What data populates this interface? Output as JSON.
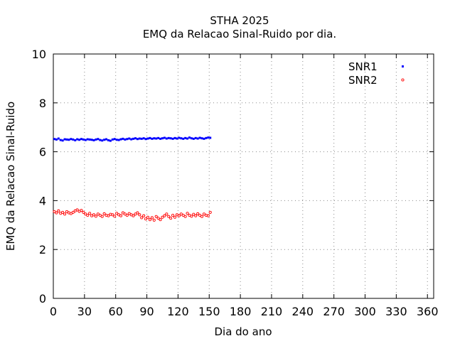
{
  "chart_data": {
    "type": "scatter",
    "title": "STHA 2025",
    "subtitle": "EMQ da Relacao Sinal-Ruido por dia.",
    "xlabel": "Dia do ano",
    "ylabel": "EMQ da Relacao Sinal-Ruido",
    "xlim": [
      0,
      366
    ],
    "ylim": [
      0,
      10
    ],
    "xticks": [
      "0",
      "30",
      "60",
      "90",
      "120",
      "150",
      "180",
      "210",
      "240",
      "270",
      "300",
      "330",
      "360"
    ],
    "yticks": [
      "0",
      "2",
      "4",
      "6",
      "8",
      "10"
    ],
    "grid": true,
    "legend_position": "top-right",
    "colors": {
      "SNR1": "#0000ff",
      "SNR2": "#ff0000"
    },
    "series": [
      {
        "name": "SNR1",
        "marker": "filled-dot",
        "x": [
          1,
          3,
          5,
          7,
          9,
          11,
          13,
          15,
          17,
          19,
          21,
          23,
          25,
          27,
          29,
          31,
          33,
          35,
          37,
          39,
          41,
          43,
          45,
          47,
          49,
          51,
          53,
          55,
          57,
          59,
          61,
          63,
          65,
          67,
          69,
          71,
          73,
          75,
          77,
          79,
          81,
          83,
          85,
          87,
          89,
          91,
          93,
          95,
          97,
          99,
          101,
          103,
          105,
          107,
          109,
          111,
          113,
          115,
          117,
          119,
          121,
          123,
          125,
          127,
          129,
          131,
          133,
          135,
          137,
          139,
          141,
          143,
          145,
          147,
          149,
          151
        ],
        "y": [
          6.52,
          6.5,
          6.54,
          6.48,
          6.46,
          6.51,
          6.5,
          6.49,
          6.52,
          6.5,
          6.47,
          6.51,
          6.49,
          6.52,
          6.5,
          6.48,
          6.51,
          6.5,
          6.49,
          6.47,
          6.5,
          6.52,
          6.48,
          6.46,
          6.49,
          6.51,
          6.47,
          6.45,
          6.5,
          6.52,
          6.49,
          6.48,
          6.51,
          6.53,
          6.5,
          6.52,
          6.54,
          6.51,
          6.53,
          6.55,
          6.52,
          6.54,
          6.53,
          6.55,
          6.52,
          6.54,
          6.56,
          6.53,
          6.55,
          6.54,
          6.56,
          6.53,
          6.55,
          6.57,
          6.54,
          6.56,
          6.55,
          6.53,
          6.56,
          6.54,
          6.57,
          6.55,
          6.53,
          6.56,
          6.54,
          6.58,
          6.55,
          6.53,
          6.56,
          6.54,
          6.57,
          6.55,
          6.53,
          6.56,
          6.58,
          6.57
        ]
      },
      {
        "name": "SNR2",
        "marker": "open-circle",
        "x": [
          1,
          3,
          5,
          7,
          9,
          11,
          13,
          15,
          17,
          19,
          21,
          23,
          25,
          27,
          29,
          31,
          33,
          35,
          37,
          39,
          41,
          43,
          45,
          47,
          49,
          51,
          53,
          55,
          57,
          59,
          61,
          63,
          65,
          67,
          69,
          71,
          73,
          75,
          77,
          79,
          81,
          83,
          85,
          87,
          89,
          91,
          93,
          95,
          97,
          99,
          101,
          103,
          105,
          107,
          109,
          111,
          113,
          115,
          117,
          119,
          121,
          123,
          125,
          127,
          129,
          131,
          133,
          135,
          137,
          139,
          141,
          143,
          145,
          147,
          149,
          151
        ],
        "y": [
          3.55,
          3.5,
          3.58,
          3.48,
          3.52,
          3.45,
          3.55,
          3.5,
          3.47,
          3.52,
          3.58,
          3.62,
          3.56,
          3.6,
          3.52,
          3.45,
          3.4,
          3.48,
          3.38,
          3.42,
          3.36,
          3.45,
          3.4,
          3.35,
          3.46,
          3.4,
          3.38,
          3.44,
          3.42,
          3.36,
          3.48,
          3.42,
          3.38,
          3.5,
          3.45,
          3.4,
          3.47,
          3.42,
          3.38,
          3.45,
          3.5,
          3.42,
          3.3,
          3.38,
          3.25,
          3.32,
          3.22,
          3.3,
          3.2,
          3.35,
          3.28,
          3.22,
          3.32,
          3.38,
          3.45,
          3.35,
          3.28,
          3.4,
          3.32,
          3.42,
          3.38,
          3.45,
          3.4,
          3.35,
          3.48,
          3.4,
          3.36,
          3.44,
          3.38,
          3.46,
          3.4,
          3.35,
          3.45,
          3.4,
          3.38,
          3.52
        ]
      }
    ]
  }
}
